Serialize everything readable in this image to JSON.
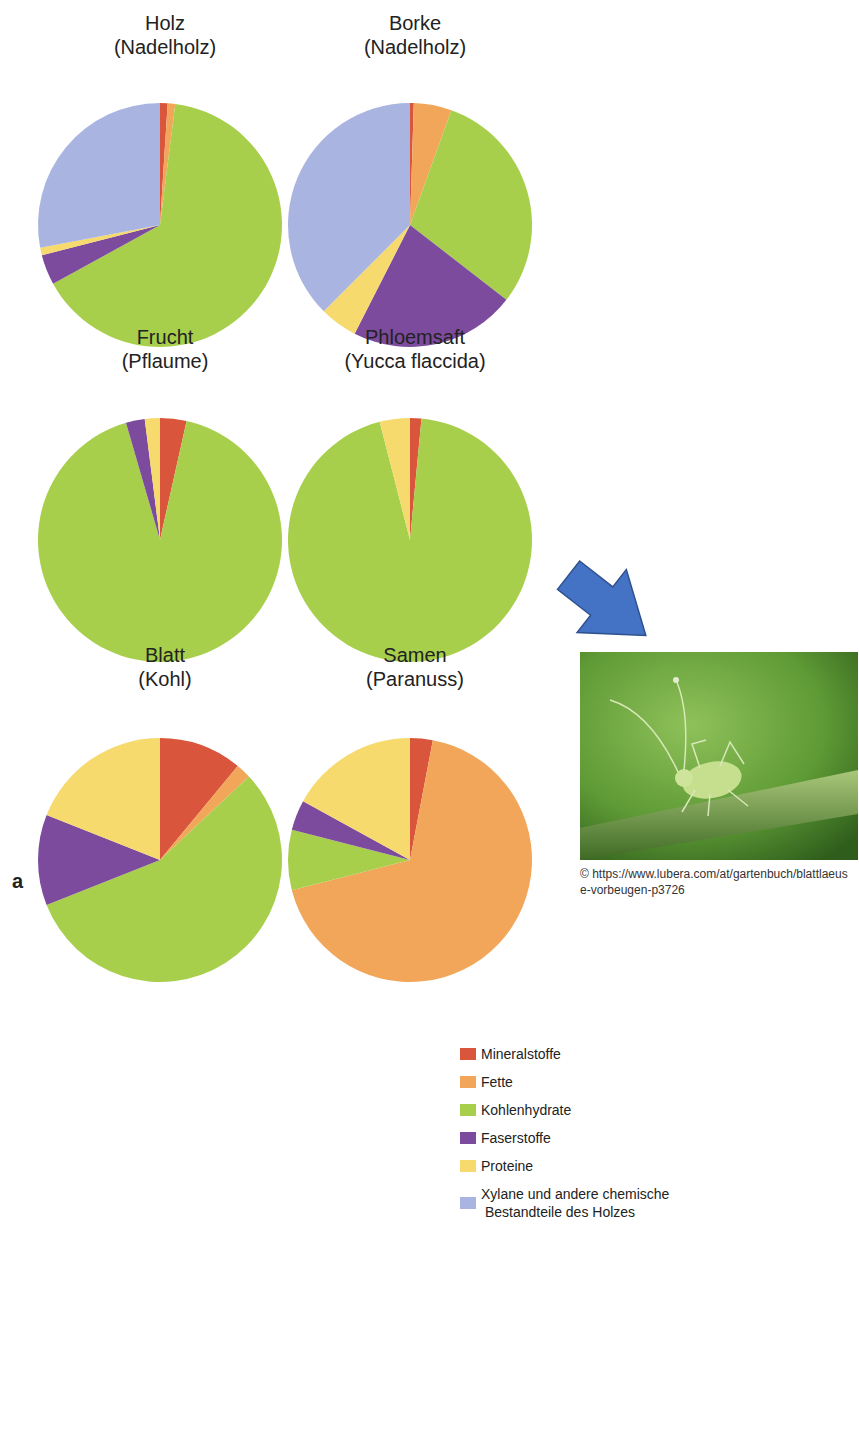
{
  "chart_data": [
    {
      "type": "pie",
      "title": "Holz",
      "subtitle": "(Nadelholz)",
      "categories": [
        "Mineralstoffe",
        "Fette",
        "Kohlenhydrate",
        "Faserstoffe",
        "Proteine",
        "Xylane und andere chemische Bestandteile des Holzes"
      ],
      "values": [
        1,
        1,
        65,
        4,
        1,
        28
      ],
      "colors": [
        "#d9553b",
        "#f2a65a",
        "#a8cf4c",
        "#7d4b9e",
        "#f6da6e",
        "#a9b5e0"
      ],
      "legend": "bottom"
    },
    {
      "type": "pie",
      "title": "Borke",
      "subtitle": "(Nadelholz)",
      "categories": [
        "Mineralstoffe",
        "Fette",
        "Kohlenhydrate",
        "Faserstoffe",
        "Proteine",
        "Xylane und andere chemische Bestandteile des Holzes"
      ],
      "values": [
        0.5,
        5,
        30,
        22,
        5,
        37.5
      ],
      "colors": [
        "#d9553b",
        "#f2a65a",
        "#a8cf4c",
        "#7d4b9e",
        "#f6da6e",
        "#a9b5e0"
      ],
      "legend": "bottom"
    },
    {
      "type": "pie",
      "title": "Frucht",
      "subtitle": "(Pflaume)",
      "categories": [
        "Mineralstoffe",
        "Fette",
        "Kohlenhydrate",
        "Faserstoffe",
        "Proteine",
        "Xylane und andere chemische Bestandteile des Holzes"
      ],
      "values": [
        3.5,
        0,
        92,
        2.5,
        2,
        0
      ],
      "colors": [
        "#d9553b",
        "#f2a65a",
        "#a8cf4c",
        "#7d4b9e",
        "#f6da6e",
        "#a9b5e0"
      ],
      "legend": "bottom"
    },
    {
      "type": "pie",
      "title": "Phloemsaft",
      "subtitle": "(Yucca flaccida)",
      "categories": [
        "Mineralstoffe",
        "Fette",
        "Kohlenhydrate",
        "Faserstoffe",
        "Proteine",
        "Xylane und andere chemische Bestandteile des Holzes"
      ],
      "values": [
        1.5,
        0,
        94.5,
        0,
        4,
        0
      ],
      "colors": [
        "#d9553b",
        "#f2a65a",
        "#a8cf4c",
        "#7d4b9e",
        "#f6da6e",
        "#a9b5e0"
      ],
      "legend": "bottom"
    },
    {
      "type": "pie",
      "title": "Blatt",
      "subtitle": "(Kohl)",
      "categories": [
        "Mineralstoffe",
        "Fette",
        "Kohlenhydrate",
        "Faserstoffe",
        "Proteine",
        "Xylane und andere chemische Bestandteile des Holzes"
      ],
      "values": [
        11,
        2,
        56,
        12,
        19,
        0
      ],
      "colors": [
        "#d9553b",
        "#f2a65a",
        "#a8cf4c",
        "#7d4b9e",
        "#f6da6e",
        "#a9b5e0"
      ],
      "legend": "bottom"
    },
    {
      "type": "pie",
      "title": "Samen",
      "subtitle": "(Paranuss)",
      "categories": [
        "Mineralstoffe",
        "Fette",
        "Kohlenhydrate",
        "Faserstoffe",
        "Proteine",
        "Xylane und andere chemische Bestandteile des Holzes"
      ],
      "values": [
        3,
        68,
        8,
        4,
        17,
        0
      ],
      "colors": [
        "#d9553b",
        "#f2a65a",
        "#a8cf4c",
        "#7d4b9e",
        "#f6da6e",
        "#a9b5e0"
      ],
      "legend": "bottom"
    }
  ],
  "panel_label": "a",
  "image_credit": "© https://www.lubera.com/at/gartenbuch/blattlaeuse-vorbeugen-p3726"
}
